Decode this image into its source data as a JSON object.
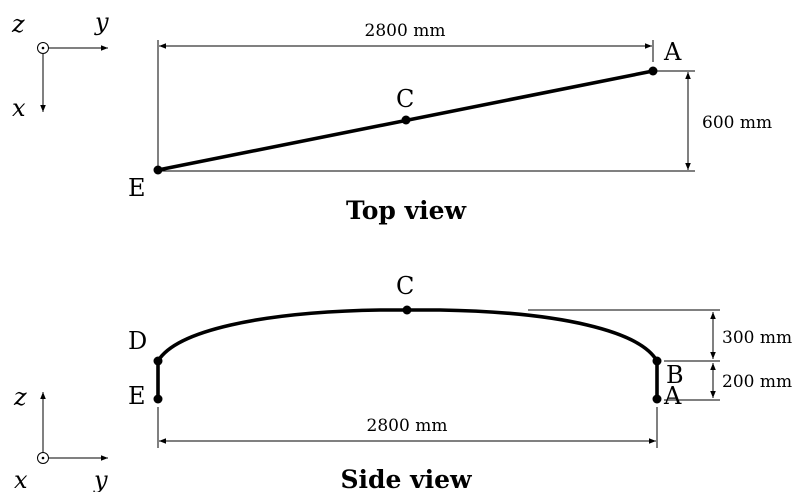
{
  "top_view": {
    "title": "Top view",
    "axes": {
      "out_of_plane": "z",
      "horizontal": "y",
      "vertical": "x"
    },
    "points": {
      "A": "A",
      "C": "C",
      "E": "E"
    },
    "dim_length": "2800 mm",
    "dim_offset": "600 mm"
  },
  "side_view": {
    "title": "Side view",
    "axes": {
      "vertical": "z",
      "out_of_plane": "x",
      "horizontal": "y"
    },
    "points": {
      "A": "A",
      "B": "B",
      "C": "C",
      "D": "D",
      "E": "E"
    },
    "dim_length": "2800 mm",
    "dim_rise": "300 mm",
    "dim_post": "200 mm"
  },
  "colors": {
    "ink": "#000000",
    "background": "#ffffff"
  }
}
